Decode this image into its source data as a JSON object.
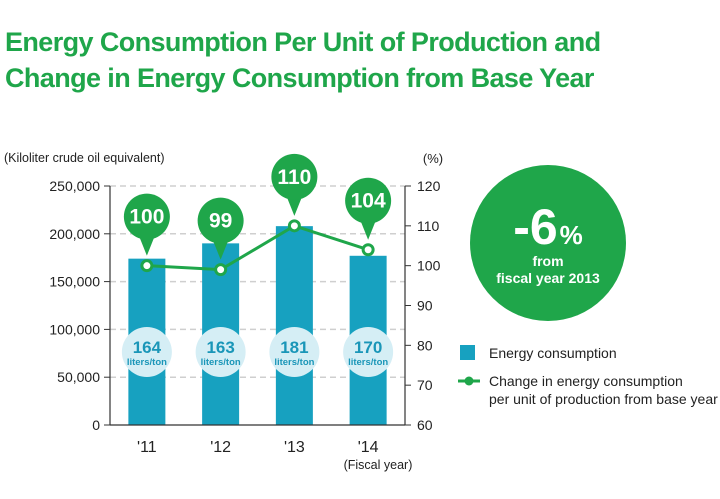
{
  "title": {
    "line1": "Energy Consumption Per Unit of Production and",
    "line2": "Change in Energy Consumption from Base Year"
  },
  "badge": {
    "value": "-6",
    "unit": "%",
    "line1": "from",
    "line2": "fiscal year 2013",
    "color": "#1fa64a"
  },
  "chart_data": {
    "type": "bar",
    "categories": [
      "'11",
      "'12",
      "'13",
      "'14"
    ],
    "xlabel": "(Fiscal year)",
    "ylabel_left": "(Kiloliter crude oil equivalent)",
    "ylabel_right": "(%)",
    "ylim_left": [
      0,
      250000
    ],
    "ylim_right": [
      60,
      120
    ],
    "yticks_left": [
      "250,000",
      "200,000",
      "150,000",
      "100,000",
      "50,000",
      "0"
    ],
    "yticks_right": [
      "120",
      "110",
      "100",
      "90",
      "80",
      "70",
      "60"
    ],
    "grid": true,
    "legend_position": "right",
    "series": [
      {
        "name": "Energy consumption",
        "type": "bar",
        "axis": "left",
        "color": "#17a1c0",
        "values": [
          174000,
          190000,
          208000,
          177000
        ]
      },
      {
        "name": "Change in energy consumption per unit of production from base year",
        "legend_line1": "Change in energy consumption",
        "legend_line2": "per unit of production from base year",
        "type": "line",
        "axis": "right",
        "color": "#1fa64a",
        "values": [
          100,
          99,
          110,
          104
        ],
        "labels": [
          "100",
          "99",
          "110",
          "104"
        ]
      }
    ],
    "bar_annotations": {
      "values": [
        "164",
        "163",
        "181",
        "170"
      ],
      "unit": "liters/ton"
    }
  }
}
